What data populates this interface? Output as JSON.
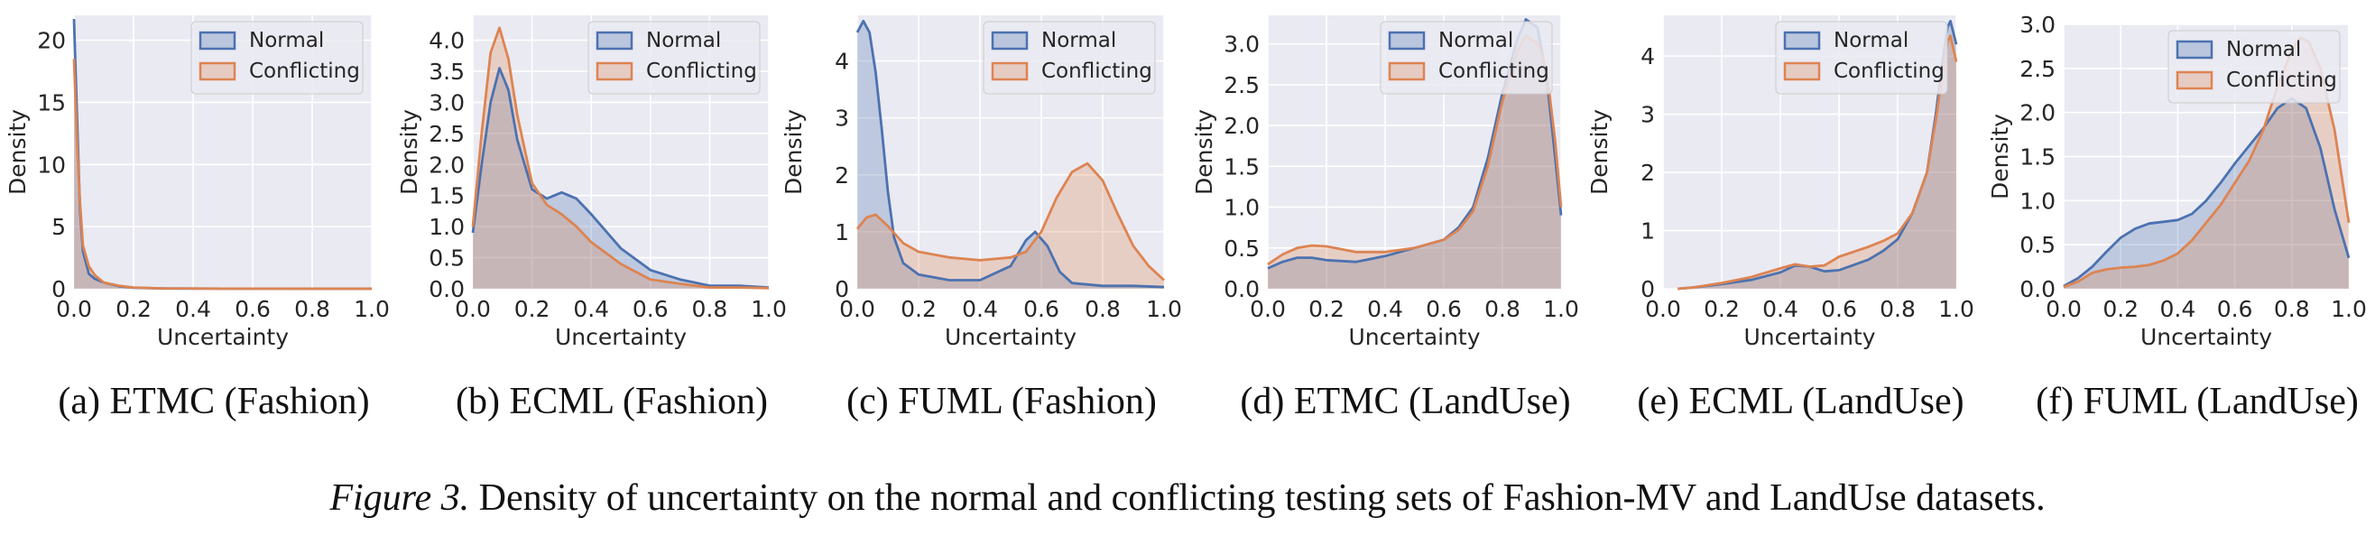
{
  "figure_caption": {
    "label": "Figure 3.",
    "text": "Density of uncertainty on the normal and conflicting testing sets of Fashion-MV and LandUse datasets."
  },
  "colors": {
    "normal": "#4c72b0",
    "conflicting": "#dd8452",
    "panel_bg": "#eaeaf2",
    "grid": "#ffffff"
  },
  "chart_data": [
    {
      "type": "area",
      "caption": "(a) ETMC (Fashion)",
      "xlabel": "Uncertainty",
      "ylabel": "Density",
      "xlim": [
        0,
        1
      ],
      "ylim": [
        0,
        22
      ],
      "xticks": [
        "0.0",
        "0.2",
        "0.4",
        "0.6",
        "0.8",
        "1.0"
      ],
      "yticks": [
        0,
        5,
        10,
        15,
        20
      ],
      "grid": true,
      "legend_position": "top-right",
      "series": [
        {
          "name": "Normal",
          "x": [
            0,
            0.01,
            0.02,
            0.03,
            0.05,
            0.07,
            0.1,
            0.15,
            0.2,
            0.3,
            0.5,
            1.0
          ],
          "y": [
            21.7,
            14,
            6.5,
            3,
            1.2,
            0.8,
            0.5,
            0.2,
            0.08,
            0.02,
            0.005,
            0
          ]
        },
        {
          "name": "Conflicting",
          "x": [
            0,
            0.01,
            0.02,
            0.03,
            0.05,
            0.07,
            0.1,
            0.15,
            0.2,
            0.3,
            0.5,
            1.0
          ],
          "y": [
            18.5,
            12,
            7,
            3.5,
            1.8,
            1.1,
            0.5,
            0.25,
            0.1,
            0.03,
            0.01,
            0
          ]
        }
      ]
    },
    {
      "type": "area",
      "caption": "(b) ECML (Fashion)",
      "xlabel": "Uncertainty",
      "ylabel": "Density",
      "xlim": [
        0,
        1
      ],
      "ylim": [
        0,
        4.4
      ],
      "xticks": [
        "0.0",
        "0.2",
        "0.4",
        "0.6",
        "0.8",
        "1.0"
      ],
      "yticks": [
        "0.0",
        "0.5",
        "1.0",
        "1.5",
        "2.0",
        "2.5",
        "3.0",
        "3.5",
        "4.0"
      ],
      "grid": true,
      "legend_position": "top-right",
      "series": [
        {
          "name": "Normal",
          "x": [
            0,
            0.03,
            0.06,
            0.09,
            0.12,
            0.15,
            0.2,
            0.25,
            0.3,
            0.35,
            0.4,
            0.5,
            0.6,
            0.7,
            0.8,
            0.9,
            1.0
          ],
          "y": [
            0.9,
            2.0,
            3.0,
            3.55,
            3.2,
            2.4,
            1.6,
            1.45,
            1.55,
            1.45,
            1.2,
            0.65,
            0.3,
            0.15,
            0.05,
            0.05,
            0.02
          ]
        },
        {
          "name": "Conflicting",
          "x": [
            0,
            0.03,
            0.06,
            0.09,
            0.12,
            0.15,
            0.2,
            0.25,
            0.3,
            0.35,
            0.4,
            0.5,
            0.6,
            0.7,
            0.8,
            0.9,
            1.0
          ],
          "y": [
            1.0,
            2.5,
            3.8,
            4.2,
            3.7,
            2.8,
            1.7,
            1.35,
            1.2,
            1.0,
            0.75,
            0.4,
            0.15,
            0.08,
            0.02,
            0.02,
            0.01
          ]
        }
      ]
    },
    {
      "type": "area",
      "caption": "(c) FUML (Fashion)",
      "xlabel": "Uncertainty",
      "ylabel": "Density",
      "xlim": [
        0,
        1
      ],
      "ylim": [
        0,
        4.8
      ],
      "xticks": [
        "0.0",
        "0.2",
        "0.4",
        "0.6",
        "0.8",
        "1.0"
      ],
      "yticks": [
        0,
        1,
        2,
        3,
        4
      ],
      "grid": true,
      "legend_position": "top-right",
      "series": [
        {
          "name": "Normal",
          "x": [
            0,
            0.02,
            0.04,
            0.06,
            0.08,
            0.1,
            0.12,
            0.15,
            0.2,
            0.3,
            0.4,
            0.5,
            0.55,
            0.58,
            0.62,
            0.66,
            0.7,
            0.8,
            0.9,
            1.0
          ],
          "y": [
            4.5,
            4.7,
            4.5,
            3.8,
            2.8,
            1.7,
            0.9,
            0.45,
            0.25,
            0.15,
            0.15,
            0.4,
            0.85,
            1.0,
            0.75,
            0.3,
            0.1,
            0.05,
            0.05,
            0.03
          ]
        },
        {
          "name": "Conflicting",
          "x": [
            0,
            0.03,
            0.06,
            0.1,
            0.15,
            0.2,
            0.3,
            0.4,
            0.5,
            0.55,
            0.6,
            0.65,
            0.7,
            0.75,
            0.8,
            0.85,
            0.9,
            0.95,
            1.0
          ],
          "y": [
            1.05,
            1.25,
            1.3,
            1.1,
            0.8,
            0.65,
            0.55,
            0.5,
            0.55,
            0.65,
            1.0,
            1.6,
            2.05,
            2.2,
            1.9,
            1.3,
            0.75,
            0.4,
            0.15
          ]
        }
      ]
    },
    {
      "type": "area",
      "caption": "(d) ETMC (LandUse)",
      "xlabel": "Uncertainty",
      "ylabel": "Density",
      "xlim": [
        0,
        1
      ],
      "ylim": [
        0,
        3.35
      ],
      "xticks": [
        "0.0",
        "0.2",
        "0.4",
        "0.6",
        "0.8",
        "1.0"
      ],
      "yticks": [
        "0.0",
        "0.5",
        "1.0",
        "1.5",
        "2.0",
        "2.5",
        "3.0"
      ],
      "grid": true,
      "legend_position": "top-right",
      "series": [
        {
          "name": "Normal",
          "x": [
            0,
            0.05,
            0.1,
            0.15,
            0.2,
            0.3,
            0.4,
            0.5,
            0.6,
            0.65,
            0.7,
            0.75,
            0.8,
            0.85,
            0.88,
            0.92,
            0.95,
            0.98,
            1.0
          ],
          "y": [
            0.25,
            0.33,
            0.38,
            0.38,
            0.35,
            0.33,
            0.4,
            0.5,
            0.6,
            0.75,
            1.0,
            1.6,
            2.4,
            3.05,
            3.3,
            3.2,
            2.6,
            1.6,
            0.9
          ]
        },
        {
          "name": "Conflicting",
          "x": [
            0,
            0.05,
            0.1,
            0.15,
            0.2,
            0.3,
            0.4,
            0.5,
            0.6,
            0.65,
            0.7,
            0.75,
            0.8,
            0.85,
            0.88,
            0.92,
            0.95,
            0.98,
            1.0
          ],
          "y": [
            0.3,
            0.42,
            0.5,
            0.53,
            0.52,
            0.45,
            0.45,
            0.5,
            0.6,
            0.72,
            0.95,
            1.5,
            2.3,
            2.9,
            3.1,
            3.0,
            2.7,
            1.8,
            1.0
          ]
        }
      ]
    },
    {
      "type": "area",
      "caption": "(e) ECML (LandUse)",
      "xlabel": "Uncertainty",
      "ylabel": "Density",
      "xlim": [
        0,
        1
      ],
      "ylim": [
        0,
        4.7
      ],
      "xticks": [
        "0.0",
        "0.2",
        "0.4",
        "0.6",
        "0.8",
        "1.0"
      ],
      "yticks": [
        0,
        1,
        2,
        3,
        4
      ],
      "grid": true,
      "legend_position": "top-right",
      "series": [
        {
          "name": "Normal",
          "x": [
            0.05,
            0.1,
            0.2,
            0.3,
            0.4,
            0.45,
            0.5,
            0.55,
            0.6,
            0.7,
            0.75,
            0.8,
            0.85,
            0.9,
            0.93,
            0.95,
            0.97,
            0.98,
            1.0
          ],
          "y": [
            0,
            0.02,
            0.08,
            0.15,
            0.28,
            0.4,
            0.38,
            0.3,
            0.32,
            0.5,
            0.65,
            0.85,
            1.3,
            2.0,
            3.0,
            3.8,
            4.5,
            4.6,
            4.2
          ]
        },
        {
          "name": "Conflicting",
          "x": [
            0.05,
            0.1,
            0.2,
            0.3,
            0.4,
            0.45,
            0.5,
            0.55,
            0.6,
            0.7,
            0.75,
            0.8,
            0.85,
            0.9,
            0.93,
            0.95,
            0.97,
            0.98,
            1.0
          ],
          "y": [
            0,
            0.02,
            0.1,
            0.2,
            0.35,
            0.42,
            0.38,
            0.4,
            0.55,
            0.72,
            0.82,
            0.95,
            1.3,
            2.0,
            2.9,
            3.6,
            4.25,
            4.35,
            3.9
          ]
        }
      ]
    },
    {
      "type": "area",
      "caption": "(f) FUML (LandUse)",
      "xlabel": "Uncertainty",
      "ylabel": "Density",
      "xlim": [
        0,
        1
      ],
      "ylim": [
        0,
        3.0
      ],
      "xticks": [
        "0.0",
        "0.2",
        "0.4",
        "0.6",
        "0.8",
        "1.0"
      ],
      "yticks": [
        "0.0",
        "0.5",
        "1.0",
        "1.5",
        "2.0",
        "2.5",
        "3.0"
      ],
      "grid": true,
      "legend_position": "top-right",
      "series": [
        {
          "name": "Normal",
          "x": [
            0,
            0.05,
            0.1,
            0.15,
            0.2,
            0.25,
            0.3,
            0.35,
            0.4,
            0.45,
            0.5,
            0.55,
            0.6,
            0.65,
            0.7,
            0.75,
            0.8,
            0.85,
            0.9,
            0.95,
            1.0
          ],
          "y": [
            0.03,
            0.12,
            0.25,
            0.42,
            0.58,
            0.68,
            0.74,
            0.76,
            0.78,
            0.85,
            1.0,
            1.2,
            1.42,
            1.62,
            1.82,
            2.05,
            2.16,
            2.05,
            1.6,
            0.9,
            0.35
          ]
        },
        {
          "name": "Conflicting",
          "x": [
            0,
            0.05,
            0.1,
            0.15,
            0.2,
            0.25,
            0.3,
            0.35,
            0.4,
            0.45,
            0.5,
            0.55,
            0.6,
            0.65,
            0.7,
            0.75,
            0.8,
            0.83,
            0.86,
            0.9,
            0.95,
            1.0
          ],
          "y": [
            0.02,
            0.08,
            0.18,
            0.22,
            0.24,
            0.25,
            0.27,
            0.32,
            0.4,
            0.55,
            0.75,
            0.95,
            1.2,
            1.45,
            1.8,
            2.3,
            2.7,
            2.85,
            2.8,
            2.5,
            1.8,
            0.75
          ]
        }
      ]
    }
  ]
}
